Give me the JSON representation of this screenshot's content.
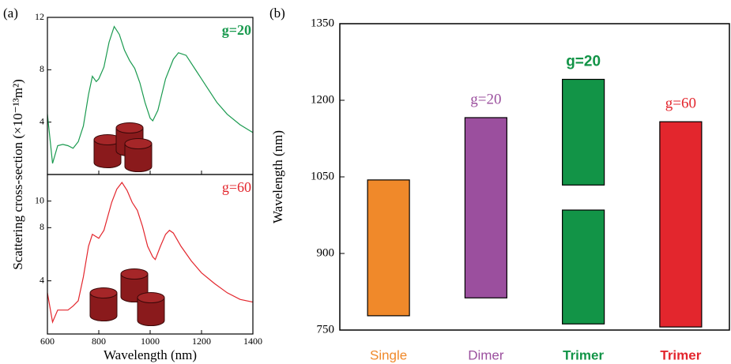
{
  "chart_data": [
    {
      "type": "line",
      "panel_label": "(a)",
      "ylabel": "Scattering cross-section (×10⁻¹³m²)",
      "annotation": "g=20",
      "color": "#1a9a4f",
      "x": [
        600,
        620,
        640,
        660,
        680,
        700,
        720,
        740,
        760,
        775,
        790,
        800,
        820,
        840,
        860,
        880,
        900,
        920,
        940,
        960,
        980,
        1000,
        1010,
        1030,
        1060,
        1090,
        1110,
        1140,
        1180,
        1220,
        1260,
        1300,
        1350,
        1400
      ],
      "values": [
        4.6,
        0.85,
        2.2,
        2.3,
        2.2,
        2.0,
        2.5,
        3.7,
        6.1,
        7.5,
        7.1,
        7.3,
        8.2,
        10.1,
        11.3,
        10.7,
        9.5,
        8.7,
        8.1,
        7.0,
        5.5,
        4.3,
        4.1,
        4.9,
        7.3,
        8.8,
        9.3,
        9.1,
        7.9,
        6.7,
        5.5,
        4.6,
        3.8,
        3.2
      ],
      "xlim": [
        600,
        1400
      ],
      "xticks": [
        600,
        800,
        1000,
        1200,
        1400
      ],
      "ylim": [
        0,
        12
      ],
      "yticks": [
        4,
        8,
        12
      ]
    },
    {
      "type": "line",
      "annotation": "g=60",
      "color": "#e3262d",
      "xlabel": "Wavelength (nm)",
      "x": [
        600,
        620,
        640,
        660,
        680,
        700,
        720,
        740,
        760,
        775,
        800,
        820,
        850,
        870,
        890,
        910,
        930,
        950,
        970,
        990,
        1010,
        1020,
        1040,
        1060,
        1075,
        1090,
        1120,
        1160,
        1200,
        1250,
        1300,
        1350,
        1400
      ],
      "values": [
        3.1,
        0.9,
        1.8,
        1.8,
        1.8,
        2.1,
        2.5,
        4.3,
        6.6,
        7.5,
        7.2,
        7.8,
        9.9,
        10.9,
        11.4,
        10.8,
        9.9,
        9.3,
        8.1,
        6.6,
        5.8,
        5.6,
        6.6,
        7.5,
        7.8,
        7.6,
        6.6,
        5.5,
        4.6,
        3.8,
        3.1,
        2.6,
        2.4
      ],
      "xlim": [
        600,
        1400
      ],
      "xticks": [
        600,
        800,
        1000,
        1200,
        1400
      ],
      "ylim": [
        0,
        12
      ],
      "yticks": [
        4,
        8,
        10
      ]
    },
    {
      "type": "floating-bar",
      "panel_label": "(b)",
      "ylabel": "Wavelength (nm)",
      "ylim": [
        750,
        1350
      ],
      "yticks": [
        750,
        900,
        1050,
        1200,
        1350
      ],
      "groups": [
        {
          "label": "Single",
          "color": "#f0892a",
          "ranges": [
            [
              778,
              1044
            ]
          ]
        },
        {
          "label": "Dimer",
          "color": "#9b4f9e",
          "annotation": "g=20",
          "ranges": [
            [
              813,
              1166
            ]
          ]
        },
        {
          "label": "Trimer",
          "color": "#129447",
          "annotation": "g=20",
          "bold": true,
          "ranges": [
            [
              762,
              985
            ],
            [
              1034,
              1241
            ]
          ]
        },
        {
          "label": "Trimer",
          "color": "#e3262d",
          "annotation": "g=60",
          "bold": true,
          "ranges": [
            [
              756,
              1158
            ]
          ]
        }
      ]
    }
  ]
}
